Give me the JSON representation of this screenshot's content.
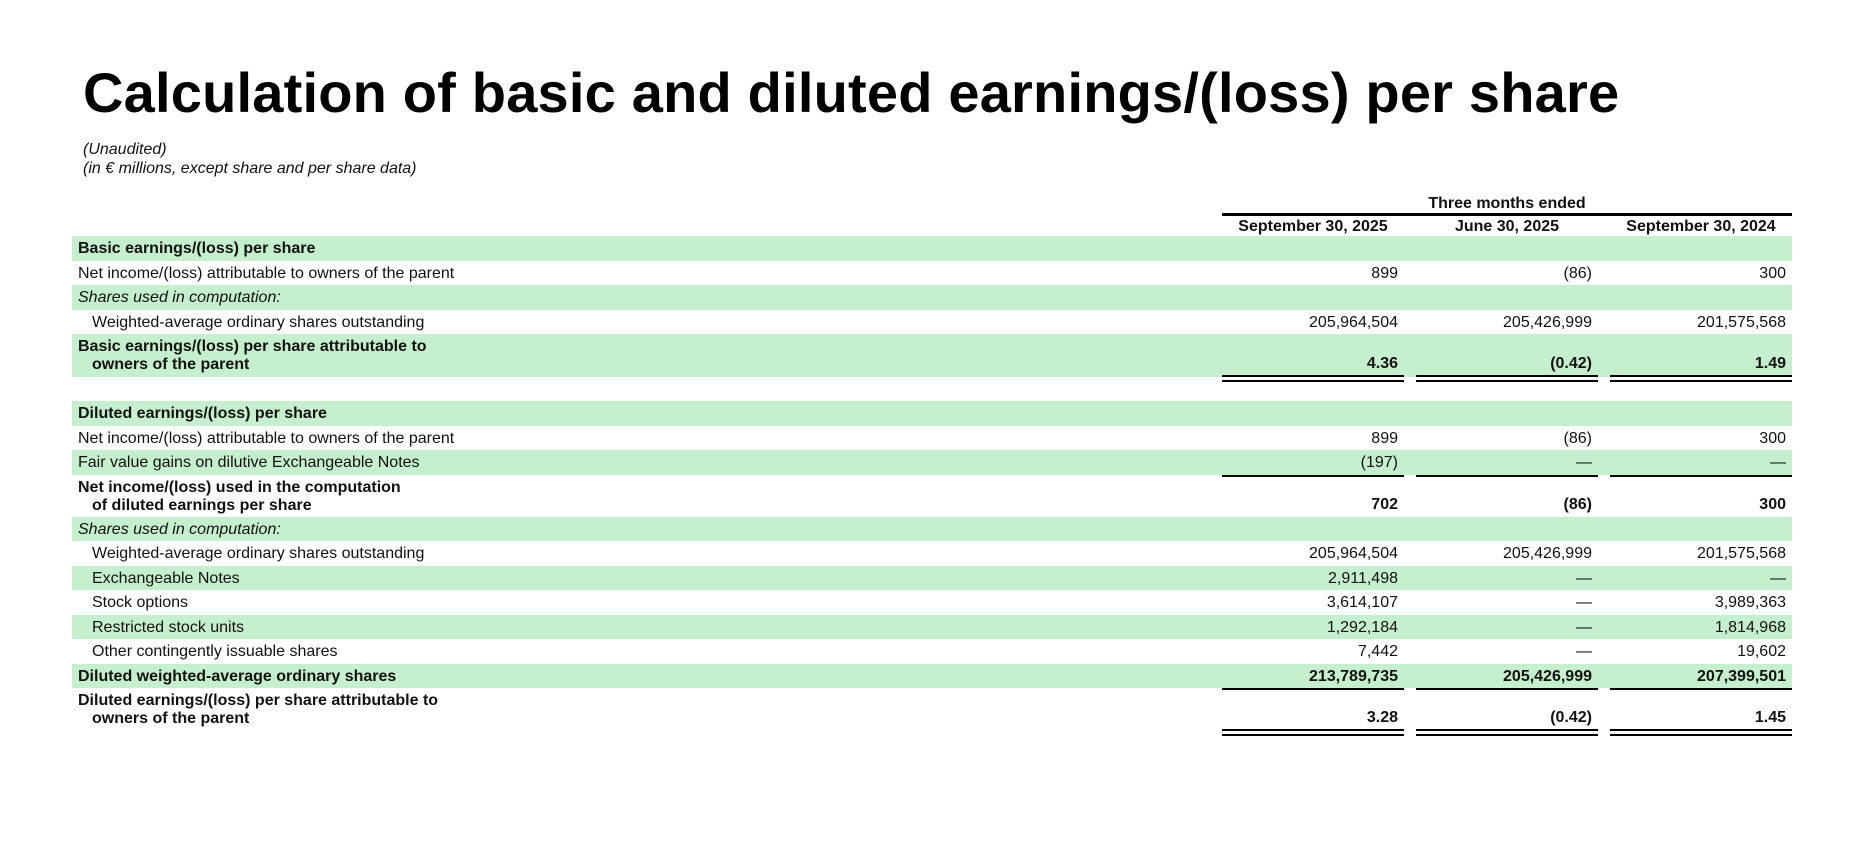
{
  "title": "Calculation of basic and diluted earnings/(loss) per share",
  "subtitle": [
    "(Unaudited)",
    "(in € millions, except share and per share data)"
  ],
  "superheader": "Three months ended",
  "columns": [
    "September 30, 2025",
    "June 30, 2025",
    "September 30, 2024"
  ],
  "rows": [
    {
      "label": "Basic earnings/(loss) per share",
      "values": [
        "",
        "",
        ""
      ]
    },
    {
      "label": "Net income/(loss) attributable to owners of the parent",
      "values": [
        "899",
        "(86)",
        "300"
      ]
    },
    {
      "label": "Shares used in computation:",
      "values": [
        "",
        "",
        ""
      ]
    },
    {
      "label": "Weighted-average ordinary shares outstanding",
      "values": [
        "205,964,504",
        "205,426,999",
        "201,575,568"
      ]
    },
    {
      "label": "Basic earnings/(loss) per share attributable to",
      "label2": "owners of the parent",
      "values": [
        "4.36",
        "(0.42)",
        "1.49"
      ]
    },
    {
      "label": "Diluted earnings/(loss) per share",
      "values": [
        "",
        "",
        ""
      ]
    },
    {
      "label": "Net income/(loss) attributable to owners of the parent",
      "values": [
        "899",
        "(86)",
        "300"
      ]
    },
    {
      "label": "Fair value gains on dilutive Exchangeable Notes",
      "values": [
        "(197)",
        "—",
        "—"
      ]
    },
    {
      "label": "Net income/(loss) used in the computation",
      "label2": "of diluted earnings per share",
      "values": [
        "702",
        "(86)",
        "300"
      ]
    },
    {
      "label": "Shares used in computation:",
      "values": [
        "",
        "",
        ""
      ]
    },
    {
      "label": "Weighted-average ordinary shares outstanding",
      "values": [
        "205,964,504",
        "205,426,999",
        "201,575,568"
      ]
    },
    {
      "label": "Exchangeable Notes",
      "values": [
        "2,911,498",
        "—",
        "—"
      ]
    },
    {
      "label": "Stock options",
      "values": [
        "3,614,107",
        "—",
        "3,989,363"
      ]
    },
    {
      "label": "Restricted stock units",
      "values": [
        "1,292,184",
        "—",
        "1,814,968"
      ]
    },
    {
      "label": "Other contingently issuable shares",
      "values": [
        "7,442",
        "—",
        "19,602"
      ]
    },
    {
      "label": "Diluted weighted-average ordinary shares",
      "values": [
        "213,789,735",
        "205,426,999",
        "207,399,501"
      ]
    },
    {
      "label": "Diluted earnings/(loss) per share attributable to",
      "label2": "owners of the parent",
      "values": [
        "3.28",
        "(0.42)",
        "1.45"
      ]
    }
  ],
  "colors": {
    "band": "#c6efce",
    "rule": "#000000"
  }
}
